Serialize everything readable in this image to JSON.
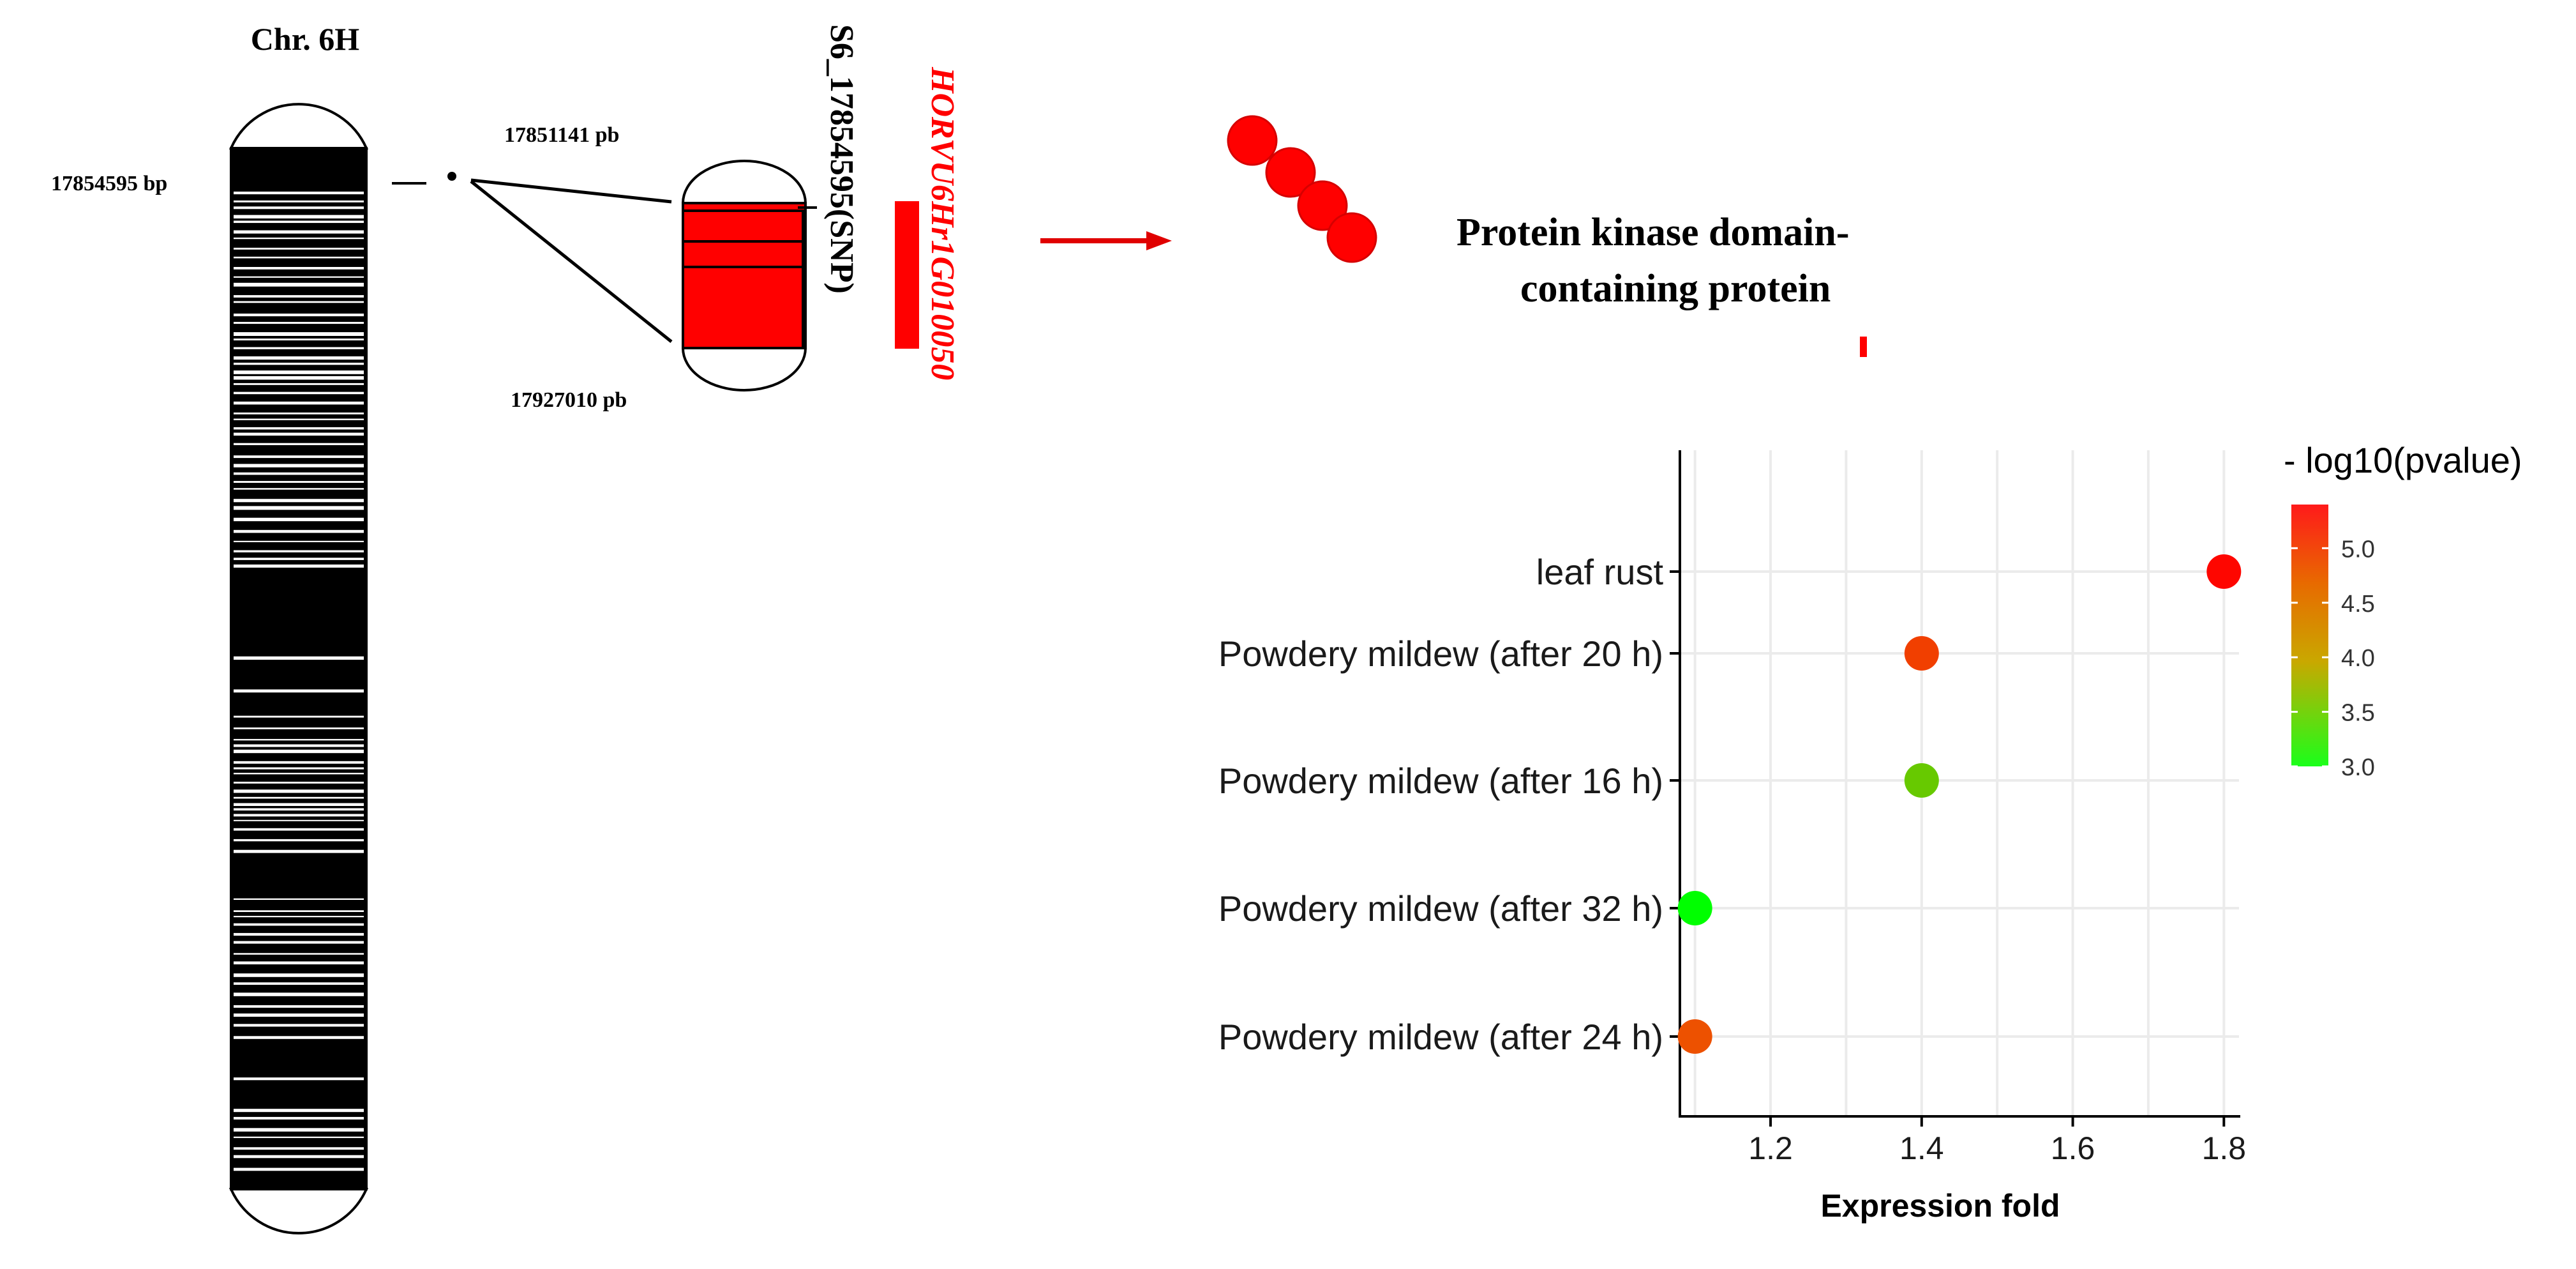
{
  "chromosome": {
    "title": "Chr. 6H",
    "marker_position_label": "17854595 bp",
    "interval_start_label": "17851141 pb",
    "interval_end_label": "17927010 pb",
    "snp_label": "S6_17854595(SNP)",
    "gene_id": "HORVU6Hr1G010050"
  },
  "protein": {
    "label_line1": "Protein kinase domain-",
    "label_line2": "containing protein"
  },
  "colors": {
    "red": "#ff0000",
    "black": "#000000",
    "gradient_low": "#00ff00",
    "gradient_mid": "#e08a00",
    "gradient_high": "#ff0000",
    "grid": "#ebebeb"
  },
  "chart_data": {
    "type": "scatter",
    "title": "",
    "xlabel": "Expression fold",
    "ylabel": "",
    "xlim": [
      1.08,
      1.82
    ],
    "x_ticks": [
      "1.2",
      "1.4",
      "1.6",
      "1.8"
    ],
    "categories": [
      "leaf rust",
      "Powdery mildew (after 20 h)",
      "Powdery mildew (after 16 h)",
      "Powdery mildew (after 32 h)",
      "Powdery mildew (after 24 h)"
    ],
    "x": [
      1.8,
      1.4,
      1.4,
      1.1,
      1.1
    ],
    "neg_log10_pvalue": [
      5.35,
      4.85,
      3.55,
      3.0,
      4.7
    ],
    "color_legend": {
      "title": "- log10(pvalue)",
      "min": 3.0,
      "max": 5.4,
      "ticks": [
        "5.0",
        "4.5",
        "4.0",
        "3.5",
        "3.0"
      ]
    }
  }
}
